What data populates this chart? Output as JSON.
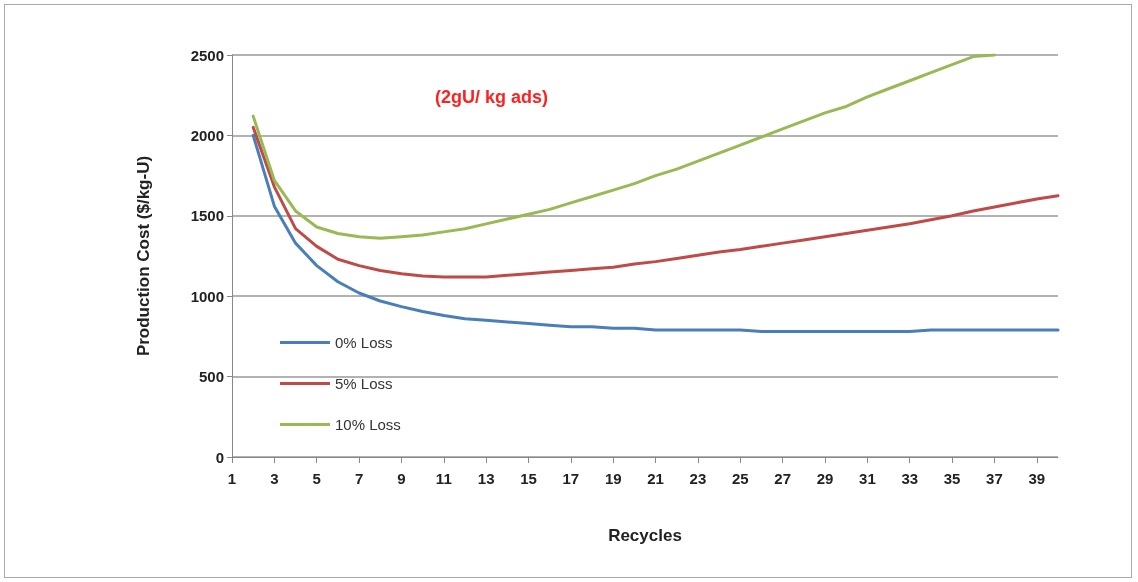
{
  "chart_data": {
    "type": "line",
    "xlabel": "Recycles",
    "ylabel": "Production Cost ($/kg-U)",
    "annotations": [
      "(2gU/ kg ads)"
    ],
    "x": [
      2,
      3,
      4,
      5,
      6,
      7,
      8,
      9,
      10,
      11,
      12,
      13,
      14,
      15,
      16,
      17,
      18,
      19,
      20,
      21,
      22,
      23,
      24,
      25,
      26,
      27,
      28,
      29,
      30,
      31,
      32,
      33,
      34,
      35,
      36,
      37,
      38,
      39,
      40
    ],
    "xlim": [
      1,
      40
    ],
    "xticks": [
      1,
      3,
      5,
      7,
      9,
      11,
      13,
      15,
      17,
      19,
      21,
      23,
      25,
      27,
      29,
      31,
      33,
      35,
      37,
      39
    ],
    "series": [
      {
        "name": "0% Loss",
        "color": "#4a7ebb",
        "values": [
          2000,
          1560,
          1330,
          1190,
          1090,
          1020,
          970,
          935,
          905,
          880,
          860,
          850,
          840,
          830,
          820,
          810,
          810,
          800,
          800,
          790,
          790,
          790,
          790,
          790,
          780,
          780,
          780,
          780,
          780,
          780,
          780,
          780,
          790,
          790,
          790,
          790,
          790,
          790,
          790
        ]
      },
      {
        "name": "5% Loss",
        "color": "#be4b48",
        "values": [
          2050,
          1680,
          1420,
          1310,
          1230,
          1190,
          1160,
          1140,
          1125,
          1120,
          1120,
          1120,
          1130,
          1140,
          1150,
          1160,
          1170,
          1180,
          1200,
          1215,
          1235,
          1255,
          1275,
          1290,
          1310,
          1330,
          1350,
          1370,
          1390,
          1410,
          1430,
          1450,
          1475,
          1500,
          1530,
          1555,
          1580,
          1605,
          1625
        ]
      },
      {
        "name": "10% Loss",
        "color": "#98b954",
        "values": [
          2120,
          1720,
          1530,
          1430,
          1390,
          1370,
          1360,
          1370,
          1380,
          1400,
          1420,
          1450,
          1480,
          1510,
          1540,
          1580,
          1620,
          1660,
          1700,
          1750,
          1790,
          1840,
          1890,
          1940,
          1990,
          2040,
          2090,
          2140,
          2180,
          2240,
          2290,
          2340,
          2390,
          2440,
          2490,
          2500,
          null,
          null,
          null
        ]
      }
    ],
    "ylim": [
      0,
      2500
    ],
    "yticks": [
      0,
      500,
      1000,
      1500,
      2000,
      2500
    ],
    "grid": "y",
    "legend": "bottom left",
    "marker": "none",
    "line_style": "solid"
  }
}
